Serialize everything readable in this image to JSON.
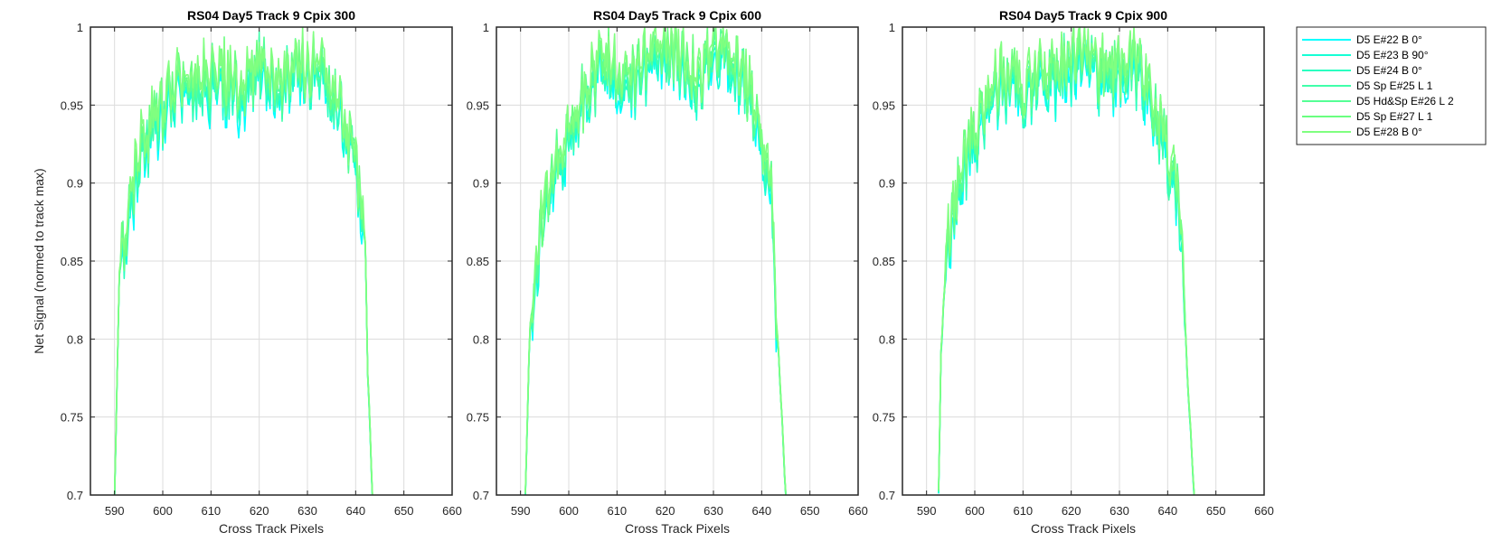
{
  "chart_data": [
    {
      "type": "line",
      "title": "RS04 Day5 Track 9  Cpix 300",
      "xlabel": "Cross Track Pixels",
      "ylabel": "Net Signal (normed to track max)",
      "xlim": [
        585,
        660
      ],
      "ylim": [
        0.7,
        1
      ],
      "xticks": [
        "590",
        "600",
        "610",
        "620",
        "630",
        "640",
        "650",
        "660"
      ],
      "yticks": [
        "0.7",
        "0.75",
        "0.8",
        "0.85",
        "0.9",
        "0.95",
        "1"
      ],
      "grid": true,
      "x_start": 590,
      "x_end": 643.5,
      "seed": 3,
      "profile": {
        "x": [
          590,
          591,
          592,
          593,
          594,
          595,
          596,
          597,
          598,
          600,
          602,
          605,
          608,
          612,
          616,
          620,
          624,
          628,
          631,
          634,
          637,
          639,
          640,
          641,
          642,
          642.5,
          643.5
        ],
        "y": [
          0.7,
          0.84,
          0.86,
          0.88,
          0.9,
          0.92,
          0.93,
          0.925,
          0.935,
          0.945,
          0.96,
          0.965,
          0.962,
          0.968,
          0.955,
          0.975,
          0.962,
          0.97,
          0.975,
          0.97,
          0.945,
          0.915,
          0.905,
          0.895,
          0.86,
          0.78,
          0.7
        ]
      }
    },
    {
      "type": "line",
      "title": "RS04 Day5 Track 9  Cpix 600",
      "xlabel": "Cross Track Pixels",
      "ylabel": "",
      "xlim": [
        585,
        660
      ],
      "ylim": [
        0.7,
        1
      ],
      "xticks": [
        "590",
        "600",
        "610",
        "620",
        "630",
        "640",
        "650",
        "660"
      ],
      "yticks": [
        "0.7",
        "0.75",
        "0.8",
        "0.85",
        "0.9",
        "0.95",
        "1"
      ],
      "grid": true,
      "x_start": 591,
      "x_end": 645,
      "seed": 7,
      "profile": {
        "x": [
          591,
          591.5,
          592,
          593,
          594,
          595,
          596,
          597,
          598,
          600,
          602,
          604,
          606,
          608,
          610,
          612,
          615,
          618,
          621,
          624,
          627,
          630,
          632,
          634,
          636,
          638,
          640,
          641,
          642,
          643,
          644,
          645
        ],
        "y": [
          0.7,
          0.76,
          0.81,
          0.84,
          0.865,
          0.885,
          0.895,
          0.905,
          0.915,
          0.93,
          0.945,
          0.96,
          0.97,
          0.975,
          0.97,
          0.965,
          0.972,
          0.98,
          0.985,
          0.975,
          0.965,
          0.985,
          0.99,
          0.975,
          0.965,
          0.95,
          0.93,
          0.91,
          0.895,
          0.82,
          0.76,
          0.7
        ]
      }
    },
    {
      "type": "line",
      "title": "RS04 Day5 Track 9  Cpix 900",
      "xlabel": "Cross Track Pixels",
      "ylabel": "",
      "xlim": [
        585,
        660
      ],
      "ylim": [
        0.7,
        1
      ],
      "xticks": [
        "590",
        "600",
        "610",
        "620",
        "630",
        "640",
        "650",
        "660"
      ],
      "yticks": [
        "0.7",
        "0.75",
        "0.8",
        "0.85",
        "0.9",
        "0.95",
        "1"
      ],
      "grid": true,
      "x_start": 592.5,
      "x_end": 645.5,
      "seed": 11,
      "profile": {
        "x": [
          592.5,
          593,
          594,
          595,
          596,
          597,
          598,
          600,
          602,
          604,
          607,
          610,
          613,
          616,
          619,
          622,
          625,
          628,
          631,
          634,
          637,
          640,
          641,
          642,
          643,
          644,
          645.5
        ],
        "y": [
          0.7,
          0.79,
          0.85,
          0.87,
          0.885,
          0.9,
          0.91,
          0.925,
          0.945,
          0.96,
          0.965,
          0.96,
          0.968,
          0.97,
          0.975,
          0.985,
          0.97,
          0.965,
          0.975,
          0.97,
          0.95,
          0.915,
          0.905,
          0.895,
          0.86,
          0.78,
          0.7
        ]
      }
    }
  ],
  "legend": {
    "placement": "right",
    "entries": [
      {
        "label": "D5 E#22 B 0°",
        "color": "#00FFFF"
      },
      {
        "label": "D5 E#23 B 90°",
        "color": "#15FFD5"
      },
      {
        "label": "D5 E#24 B 0°",
        "color": "#2AFFC0"
      },
      {
        "label": "D5 Sp E#25 L 1",
        "color": "#40FFAA"
      },
      {
        "label": "D5 Hd&Sp E#26 L 2",
        "color": "#55FF95"
      },
      {
        "label": "D5 Sp E#27 L 1",
        "color": "#6AFF80"
      },
      {
        "label": "D5 E#28 B 0°",
        "color": "#80FF80"
      }
    ]
  }
}
